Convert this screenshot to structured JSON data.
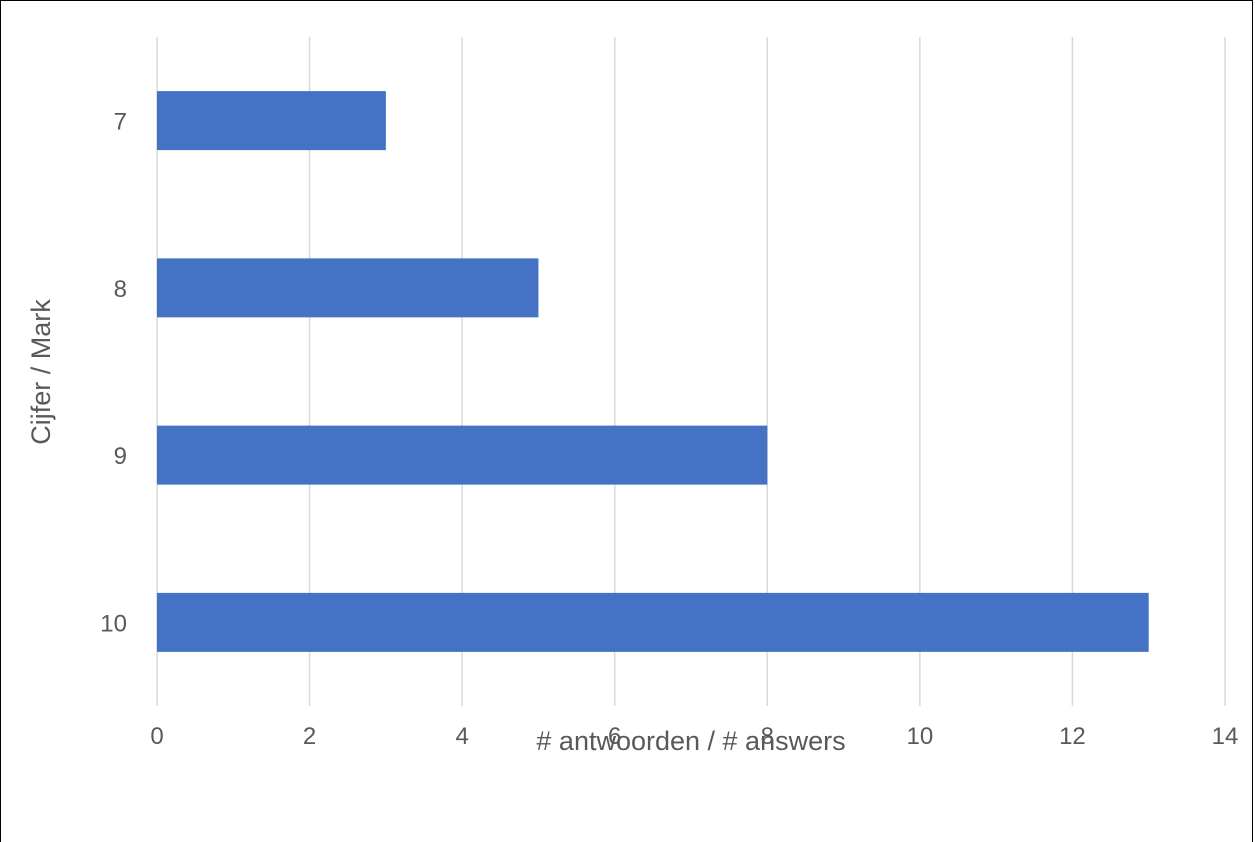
{
  "chart_data": {
    "type": "bar",
    "orientation": "horizontal",
    "title": "",
    "categories": [
      "7",
      "8",
      "9",
      "10"
    ],
    "values": [
      3,
      5,
      8,
      13
    ],
    "xlabel": "# antwoorden / # answers",
    "ylabel": "Cijfer / Mark",
    "xlim": [
      0,
      14
    ],
    "x_ticks": [
      "0",
      "2",
      "4",
      "6",
      "8",
      "10",
      "12",
      "14"
    ],
    "grid": "vertical",
    "legend": "none",
    "bar_color": "#4472C4",
    "grid_color": "#D9D9D9",
    "text_color": "#595959"
  }
}
